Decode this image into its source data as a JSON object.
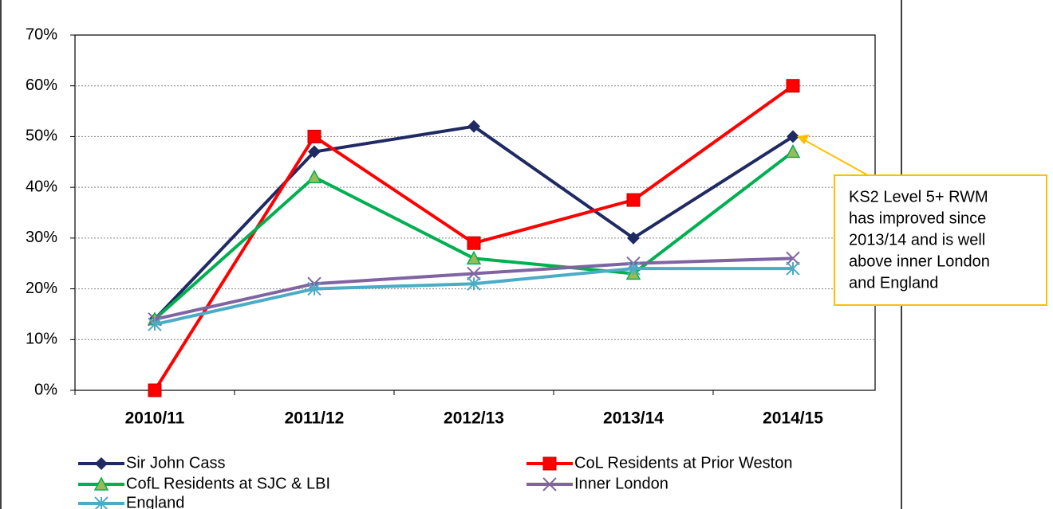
{
  "chart_data": {
    "type": "line",
    "categories": [
      "2010/11",
      "2011/12",
      "2012/13",
      "2013/14",
      "2014/15"
    ],
    "series": [
      {
        "name": "Sir John Cass",
        "color": "#1f2a63",
        "marker": "diamond",
        "values": [
          14,
          47,
          52,
          30,
          50
        ]
      },
      {
        "name": "CoL Residents at Prior Weston",
        "color": "#ff0000",
        "marker": "square",
        "values": [
          0,
          50,
          29,
          37.5,
          60
        ]
      },
      {
        "name": "CofL Residents at SJC & LBI",
        "color": "#00b050",
        "marker": "triangle",
        "values": [
          14,
          42,
          26,
          23,
          47
        ]
      },
      {
        "name": "Inner London",
        "color": "#8064a2",
        "marker": "x",
        "values": [
          14,
          21,
          23,
          25,
          26
        ]
      },
      {
        "name": "England",
        "color": "#4bacc6",
        "marker": "star",
        "values": [
          13,
          20,
          21,
          24,
          24
        ]
      }
    ],
    "ylim": [
      0,
      70
    ],
    "yticks": [
      {
        "value": 0,
        "label": "0%"
      },
      {
        "value": 10,
        "label": "10%"
      },
      {
        "value": 20,
        "label": "20%"
      },
      {
        "value": 30,
        "label": "30%"
      },
      {
        "value": 40,
        "label": "40%"
      },
      {
        "value": 50,
        "label": "50%"
      },
      {
        "value": 60,
        "label": "60%"
      },
      {
        "value": 70,
        "label": "70%"
      }
    ],
    "grid": true,
    "legend": "bottom",
    "annotation": {
      "lines": [
        "KS2 Level 5+ RWM",
        "has improved since",
        "2013/14 and is well",
        "above inner London",
        "and England"
      ],
      "border": "#ffc000",
      "series": 0,
      "point": 4
    }
  }
}
